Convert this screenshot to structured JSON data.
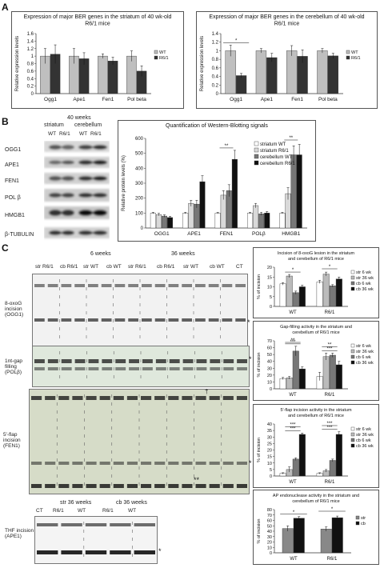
{
  "panels": {
    "a": "A",
    "b": "B",
    "c": "C"
  },
  "panel_b": {
    "age": "40 weeks",
    "tissue_striatum": "striatum",
    "tissue_cerebellum": "cerebellum",
    "lane_wt": "WT",
    "lane_r61": "R6/1",
    "proteins": [
      "OGG1",
      "APE1",
      "FEN1",
      "POL β",
      "HMGB1",
      "β-TUBULIN"
    ]
  },
  "panel_c": {
    "age_6": "6 weeks",
    "age_36": "36 weeks",
    "lanes": [
      "str R6/1",
      "cb R6/1",
      "str WT",
      "cb WT",
      "str R6/1",
      "cb R6/1",
      "str WT",
      "cb WT",
      "CT"
    ],
    "assay_8oxog": "8-oxoG incision (OGG1)",
    "assay_gap": "1nt-gap filling (POLβ)",
    "assay_flap": "5'-flap incision (FEN1)",
    "assay_thf": "THF incision (APE1)",
    "thf_head_str": "str 36 weeks",
    "thf_head_cb": "cb 36 weeks",
    "thf_lanes": [
      "CT",
      "R6/1",
      "WT",
      "R6/1",
      "WT"
    ],
    "asterisk": "*",
    "double_asterisk": "**",
    "dagger": "†"
  },
  "chart_data": [
    {
      "type": "bar",
      "title": "Expression of major BER genes in the striatum of 40 wk-old R6/1 mice",
      "ylabel": "Relative expression levels",
      "categories": [
        "Ogg1",
        "Ape1",
        "Fen1",
        "Pol beta"
      ],
      "ylim": [
        0,
        1.6
      ],
      "yticks": [
        "0",
        "0.2",
        "0.4",
        "0.6",
        "0.8",
        "1",
        "1.2",
        "1.4",
        "1.6"
      ],
      "series": [
        {
          "name": "WT",
          "color": "#bfbfbf",
          "values": [
            1.0,
            1.0,
            1.0,
            1.0
          ],
          "err": [
            0.2,
            0.2,
            0.06,
            0.14
          ]
        },
        {
          "name": "R6/1",
          "color": "#333333",
          "values": [
            1.05,
            0.93,
            0.87,
            0.6
          ],
          "err": [
            0.25,
            0.16,
            0.1,
            0.14
          ]
        }
      ],
      "legend": "right"
    },
    {
      "type": "bar",
      "title": "Expression of major BER genes in the cerebellum of 40 wk-old R6/1 mice",
      "ylabel": "Relative expression levels",
      "categories": [
        "Ogg1",
        "Ape1",
        "Fen1",
        "Pol beta"
      ],
      "ylim": [
        0,
        1.4
      ],
      "yticks": [
        "0",
        "0.2",
        "0.4",
        "0.6",
        "0.8",
        "1",
        "1.2",
        "1.4"
      ],
      "series": [
        {
          "name": "WT",
          "color": "#bfbfbf",
          "values": [
            1.0,
            1.0,
            1.0,
            1.0
          ],
          "err": [
            0.13,
            0.05,
            0.12,
            0.05
          ]
        },
        {
          "name": "R6/1",
          "color": "#333333",
          "values": [
            0.42,
            0.84,
            0.87,
            0.88
          ],
          "err": [
            0.05,
            0.1,
            0.15,
            0.06
          ]
        }
      ],
      "annotations": [
        "*"
      ],
      "legend": "right"
    },
    {
      "type": "bar",
      "title": "Quantification of Western-Blotting signals",
      "ylabel": "Relative protein levels (%)",
      "categories": [
        "OGG1",
        "APE1",
        "FEN1",
        "POLβ",
        "HMGB1"
      ],
      "ylim": [
        0,
        600
      ],
      "yticks": [
        "0",
        "100",
        "200",
        "300",
        "400",
        "500",
        "600"
      ],
      "series": [
        {
          "name": "striatum WT",
          "color": "#ffffff",
          "values": [
            100,
            100,
            100,
            100,
            100
          ],
          "err": [
            5,
            5,
            5,
            5,
            5
          ]
        },
        {
          "name": "striatum R6/1",
          "color": "#d9d9d9",
          "values": [
            90,
            165,
            220,
            150,
            230
          ],
          "err": [
            8,
            20,
            30,
            15,
            40
          ]
        },
        {
          "name": "cerebellum WT",
          "color": "#777777",
          "values": [
            80,
            160,
            250,
            95,
            490
          ],
          "err": [
            8,
            25,
            40,
            10,
            60
          ]
        },
        {
          "name": "cerebellum R6/1",
          "color": "#111111",
          "values": [
            70,
            310,
            460,
            100,
            490
          ],
          "err": [
            8,
            40,
            60,
            10,
            70
          ]
        }
      ],
      "annotations": [
        "**",
        "**"
      ],
      "legend": "top-right"
    },
    {
      "type": "bar",
      "title": "Incision of 8-oxoG lesion in the striatum and cerebellum of R6/1 mice",
      "ylabel": "% of incision",
      "categories": [
        "WT",
        "R6/1"
      ],
      "ylim": [
        0,
        20
      ],
      "yticks": [
        "0",
        "5",
        "10",
        "15",
        "20"
      ],
      "series": [
        {
          "name": "str 6 wk",
          "color": "#ffffff",
          "values": [
            11.5,
            12.5
          ],
          "err": [
            0.6,
            0.8
          ]
        },
        {
          "name": "str 36 wk",
          "color": "#bbbbbb",
          "values": [
            15.5,
            16.5
          ],
          "err": [
            0.8,
            1.0
          ]
        },
        {
          "name": "cb 6 wk",
          "color": "#777777",
          "values": [
            7,
            10.5
          ],
          "err": [
            0.8,
            0.6
          ]
        },
        {
          "name": "cb 36 wk",
          "color": "#111111",
          "values": [
            10,
            14
          ],
          "err": [
            0.8,
            1.0
          ]
        }
      ],
      "annotations": [
        "*",
        "*"
      ],
      "legend": "right"
    },
    {
      "type": "bar",
      "title": "Gap-filling activity in the striatum and cerebellum of R6/1 mice",
      "ylabel": "% of incision",
      "categories": [
        "WT",
        "R6/1"
      ],
      "ylim": [
        0,
        70
      ],
      "yticks": [
        "0",
        "10",
        "20",
        "30",
        "40",
        "50",
        "60",
        "70"
      ],
      "series": [
        {
          "name": "str 6 wk",
          "color": "#ffffff",
          "values": [
            15,
            18
          ],
          "err": [
            1.5,
            6
          ]
        },
        {
          "name": "str 36 wk",
          "color": "#bbbbbb",
          "values": [
            16,
            47
          ],
          "err": [
            2,
            5
          ]
        },
        {
          "name": "cb 6 wk",
          "color": "#777777",
          "values": [
            55,
            49
          ],
          "err": [
            7,
            3
          ]
        },
        {
          "name": "cb 36 wk",
          "color": "#111111",
          "values": [
            29,
            35
          ],
          "err": [
            3,
            5
          ]
        }
      ],
      "annotations": [
        "***",
        "**",
        "***",
        "**"
      ],
      "legend": "right"
    },
    {
      "type": "bar",
      "title": "5'-flap incision activity in the striatum and cerebellum of R6/1 mice",
      "ylabel": "% of incision",
      "categories": [
        "WT",
        "R6/1"
      ],
      "ylim": [
        0,
        40
      ],
      "yticks": [
        "0",
        "5",
        "10",
        "15",
        "20",
        "25",
        "30",
        "35",
        "40"
      ],
      "series": [
        {
          "name": "str 6 wk",
          "color": "#ffffff",
          "values": [
            2,
            2
          ],
          "err": [
            0.5,
            0.5
          ]
        },
        {
          "name": "str 36 wk",
          "color": "#bbbbbb",
          "values": [
            5,
            4
          ],
          "err": [
            2,
            1
          ]
        },
        {
          "name": "cb 6 wk",
          "color": "#777777",
          "values": [
            13,
            12
          ],
          "err": [
            1,
            1
          ]
        },
        {
          "name": "cb 36 wk",
          "color": "#111111",
          "values": [
            32,
            32
          ],
          "err": [
            1,
            2
          ]
        }
      ],
      "annotations": [
        "***",
        "***",
        "***",
        "***"
      ],
      "legend": "right"
    },
    {
      "type": "bar",
      "title": "AP endonuclease activity in the striatum and cerebellum of R6/1 mice",
      "ylabel": "% of incision",
      "categories": [
        "WT",
        "R6/1"
      ],
      "ylim": [
        0,
        80
      ],
      "yticks": [
        "0",
        "10",
        "20",
        "30",
        "40",
        "50",
        "60",
        "70",
        "80"
      ],
      "series": [
        {
          "name": "str",
          "color": "#888888",
          "values": [
            45,
            44
          ],
          "err": [
            5,
            4
          ]
        },
        {
          "name": "cb",
          "color": "#111111",
          "values": [
            64,
            65
          ],
          "err": [
            3,
            3
          ]
        }
      ],
      "annotations": [
        "*",
        "*"
      ],
      "legend": "right"
    }
  ]
}
